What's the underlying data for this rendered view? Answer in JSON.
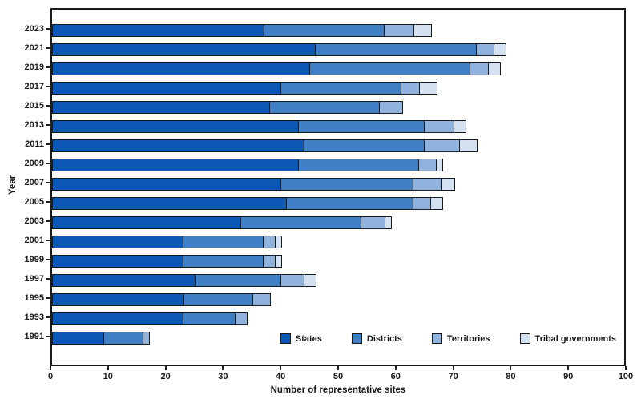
{
  "chart_data": {
    "type": "bar",
    "orientation": "horizontal",
    "stacked": true,
    "title": "",
    "xlabel": "Number of representative sites",
    "ylabel": "Year",
    "xlim": [
      0,
      100
    ],
    "x_ticks": [
      0,
      10,
      20,
      30,
      40,
      50,
      60,
      70,
      80,
      90,
      100
    ],
    "grid": false,
    "legend_position": "inside-bottom-right",
    "bar_border_color": "#1a1a1a",
    "categories": [
      "2023",
      "2021",
      "2019",
      "2017",
      "2015",
      "2013",
      "2011",
      "2009",
      "2007",
      "2005",
      "2003",
      "2001",
      "1999",
      "1997",
      "1995",
      "1993",
      "1991"
    ],
    "series": [
      {
        "name": "States",
        "color": "#0b57b4",
        "values": [
          37,
          46,
          45,
          40,
          38,
          43,
          44,
          43,
          40,
          41,
          33,
          23,
          23,
          25,
          23,
          23,
          9
        ]
      },
      {
        "name": "Districts",
        "color": "#3f7fc6",
        "values": [
          21,
          28,
          28,
          21,
          19,
          22,
          21,
          21,
          23,
          22,
          21,
          14,
          14,
          15,
          12,
          9,
          7
        ]
      },
      {
        "name": "Territories",
        "color": "#8fb3dd",
        "values": [
          5,
          3,
          3,
          3,
          4,
          5,
          6,
          3,
          5,
          3,
          4,
          2,
          2,
          4,
          3,
          2,
          1
        ]
      },
      {
        "name": "Tribal governments",
        "color": "#d3e1f1",
        "values": [
          3,
          2,
          2,
          3,
          0,
          2,
          3,
          1,
          2,
          2,
          1,
          1,
          1,
          2,
          0,
          0,
          0
        ]
      }
    ],
    "totals": [
      66,
      79,
      78,
      67,
      61,
      72,
      74,
      68,
      70,
      68,
      59,
      40,
      40,
      46,
      38,
      34,
      17
    ]
  },
  "colors": {
    "axis": "#1a1a1a",
    "background": "#ffffff"
  }
}
